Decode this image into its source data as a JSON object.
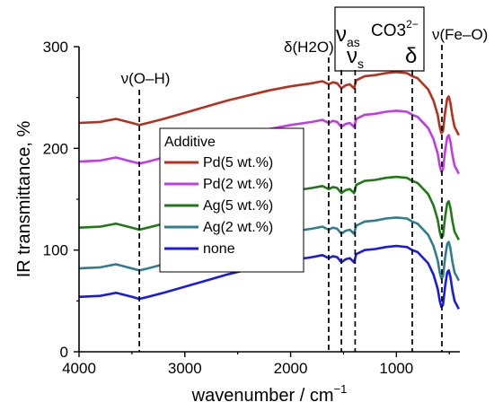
{
  "chart_data": {
    "type": "line",
    "xlabel": "wavenumber / cm",
    "xlabel_superscript": "−1",
    "ylabel": "IR transmittance, %",
    "xlim": [
      4000,
      400
    ],
    "ylim": [
      0,
      300
    ],
    "x_reversed": true,
    "xticks": [
      4000,
      3000,
      2000,
      1000
    ],
    "yticks": [
      0,
      100,
      200,
      300
    ],
    "xtick_labels": [
      "4000",
      "3000",
      "2000",
      "1000"
    ],
    "ytick_labels": [
      "0",
      "100",
      "200",
      "300"
    ],
    "grid": false,
    "legend": {
      "title": "Additive",
      "placement": "center-left",
      "entries": [
        "Pd(5 wt.%)",
        "Pd(2 wt.%)",
        "Ag(5 wt.%)",
        "Ag(2 wt.%)",
        "none"
      ]
    },
    "colors": {
      "Pd(5 wt.%)": "#b5311e",
      "Pd(2 wt.%)": "#c03ce6",
      "Ag(5 wt.%)": "#1f7a16",
      "Ag(2 wt.%)": "#2e7e8e",
      "none": "#1a1ae6"
    },
    "annotations": {
      "oh": {
        "label": "ν(O–H)",
        "x": 3430
      },
      "h2o": {
        "label": "δ(H2O)",
        "x": 1640
      },
      "nu_as": {
        "label": "ν",
        "sub": "as",
        "x": 1520
      },
      "nu_s": {
        "label": "ν",
        "sub": "s",
        "x": 1390
      },
      "co3": {
        "label": "CO3",
        "sup": "2−"
      },
      "delta": {
        "label": "δ",
        "x": 850
      },
      "feo": {
        "label": "ν(Fe–O)",
        "x": 570
      }
    },
    "series": [
      {
        "name": "Pd(5 wt.%)",
        "offset": 225,
        "profile": "base"
      },
      {
        "name": "Pd(2 wt.%)",
        "offset": 187,
        "profile": "base"
      },
      {
        "name": "Ag(5 wt.%)",
        "offset": 122,
        "profile": "base"
      },
      {
        "name": "Ag(2 wt.%)",
        "offset": 82,
        "profile": "base"
      },
      {
        "name": "none",
        "offset": 54,
        "profile": "base"
      }
    ],
    "profile_points": [
      [
        4000,
        0
      ],
      [
        3800,
        1
      ],
      [
        3650,
        4
      ],
      [
        3500,
        0
      ],
      [
        3430,
        -2
      ],
      [
        3350,
        0
      ],
      [
        3200,
        4
      ],
      [
        3000,
        10
      ],
      [
        2800,
        16
      ],
      [
        2600,
        22
      ],
      [
        2400,
        27
      ],
      [
        2200,
        32
      ],
      [
        2000,
        36
      ],
      [
        1800,
        39
      ],
      [
        1700,
        41
      ],
      [
        1640,
        38
      ],
      [
        1600,
        40
      ],
      [
        1560,
        39
      ],
      [
        1520,
        34
      ],
      [
        1480,
        37
      ],
      [
        1440,
        38
      ],
      [
        1400,
        34
      ],
      [
        1380,
        42
      ],
      [
        1300,
        46
      ],
      [
        1200,
        47
      ],
      [
        1100,
        49
      ],
      [
        1000,
        50
      ],
      [
        900,
        49
      ],
      [
        850,
        46
      ],
      [
        800,
        44
      ],
      [
        700,
        33
      ],
      [
        650,
        22
      ],
      [
        610,
        8
      ],
      [
        590,
        -4
      ],
      [
        575,
        -10
      ],
      [
        560,
        -8
      ],
      [
        540,
        10
      ],
      [
        520,
        24
      ],
      [
        505,
        26
      ],
      [
        490,
        20
      ],
      [
        470,
        6
      ],
      [
        450,
        -4
      ],
      [
        430,
        -8
      ],
      [
        410,
        -12
      ]
    ]
  }
}
